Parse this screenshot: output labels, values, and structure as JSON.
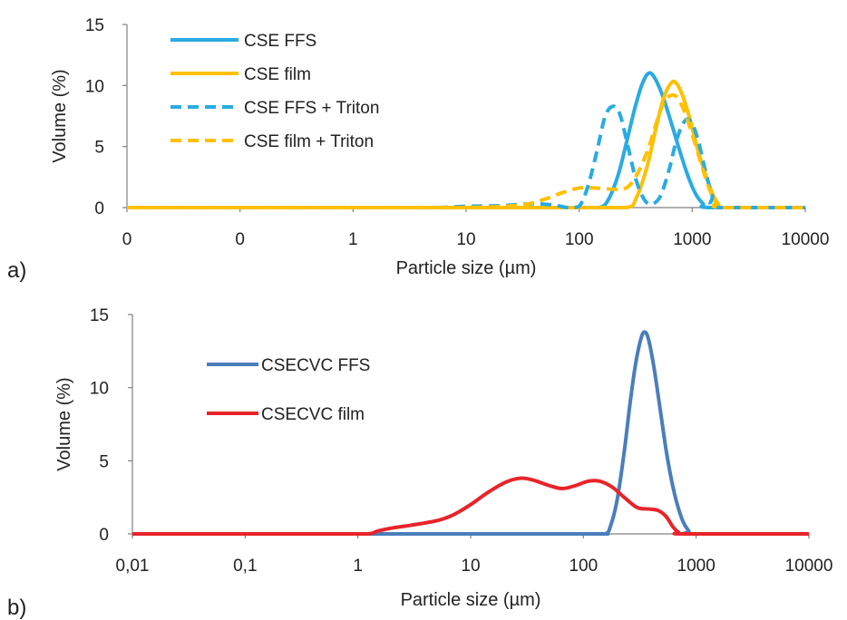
{
  "chart_data": [
    {
      "panel_label": "a)",
      "type": "line",
      "xlabel": "Particle size  (µm)",
      "ylabel": "Volume (%)",
      "x_scale": "log",
      "x_ticks": [
        0.01,
        0.1,
        1,
        10,
        100,
        1000,
        10000
      ],
      "x_tick_labels": [
        "0",
        "0",
        "1",
        "10",
        "100",
        "1000",
        "10000"
      ],
      "y_ticks": [
        0,
        5,
        10,
        15
      ],
      "y_tick_labels": [
        "0",
        "5",
        "10",
        "15"
      ],
      "xlim": [
        0.01,
        10000
      ],
      "ylim": [
        0,
        15
      ],
      "grid": false,
      "legend_position": "top-left",
      "series": [
        {
          "name": "CSE FFS",
          "color": "#29abe2",
          "dash": "solid",
          "points": [
            [
              0.01,
              0
            ],
            [
              1,
              0
            ],
            [
              100,
              0
            ],
            [
              150,
              0
            ],
            [
              180,
              0.6
            ],
            [
              220,
              2.6
            ],
            [
              260,
              5.2
            ],
            [
              310,
              8.1
            ],
            [
              360,
              10.1
            ],
            [
              410,
              11.0
            ],
            [
              460,
              10.7
            ],
            [
              540,
              9.3
            ],
            [
              640,
              7.2
            ],
            [
              760,
              4.9
            ],
            [
              900,
              2.8
            ],
            [
              1060,
              1.2
            ],
            [
              1250,
              0.3
            ],
            [
              1450,
              0
            ],
            [
              10000,
              0
            ]
          ]
        },
        {
          "name": "CSE film",
          "color": "#ffc000",
          "dash": "solid",
          "points": [
            [
              0.01,
              0
            ],
            [
              1,
              0
            ],
            [
              100,
              0
            ],
            [
              260,
              0
            ],
            [
              320,
              0.8
            ],
            [
              400,
              3.4
            ],
            [
              480,
              6.6
            ],
            [
              560,
              9.0
            ],
            [
              650,
              10.2
            ],
            [
              720,
              10.2
            ],
            [
              820,
              9.2
            ],
            [
              950,
              7.3
            ],
            [
              1100,
              5.0
            ],
            [
              1300,
              2.8
            ],
            [
              1500,
              1.2
            ],
            [
              1700,
              0.3
            ],
            [
              1900,
              0
            ],
            [
              10000,
              0
            ]
          ]
        },
        {
          "name": "CSE FFS + Triton",
          "color": "#29abe2",
          "dash": "dashed",
          "points": [
            [
              0.01,
              0
            ],
            [
              1,
              0
            ],
            [
              5,
              0
            ],
            [
              10,
              0.1
            ],
            [
              20,
              0.15
            ],
            [
              35,
              0.3
            ],
            [
              45,
              0.3
            ],
            [
              60,
              0.2
            ],
            [
              80,
              0
            ],
            [
              100,
              0.1
            ],
            [
              120,
              1.8
            ],
            [
              145,
              4.8
            ],
            [
              170,
              7.5
            ],
            [
              200,
              8.3
            ],
            [
              230,
              7.6
            ],
            [
              270,
              5.0
            ],
            [
              320,
              2.2
            ],
            [
              380,
              0.6
            ],
            [
              440,
              0.3
            ],
            [
              520,
              0.9
            ],
            [
              620,
              3.0
            ],
            [
              730,
              5.6
            ],
            [
              860,
              7.1
            ],
            [
              980,
              7.0
            ],
            [
              1120,
              5.6
            ],
            [
              1300,
              3.1
            ],
            [
              1500,
              1.0
            ],
            [
              1700,
              0
            ],
            [
              10000,
              0
            ]
          ]
        },
        {
          "name": "CSE film + Triton",
          "color": "#ffc000",
          "dash": "dashed",
          "points": [
            [
              0.01,
              0
            ],
            [
              1,
              0
            ],
            [
              10,
              0
            ],
            [
              30,
              0.2
            ],
            [
              50,
              0.7
            ],
            [
              70,
              1.2
            ],
            [
              100,
              1.6
            ],
            [
              140,
              1.6
            ],
            [
              200,
              1.5
            ],
            [
              260,
              1.6
            ],
            [
              320,
              2.6
            ],
            [
              400,
              4.6
            ],
            [
              480,
              6.9
            ],
            [
              560,
              8.6
            ],
            [
              650,
              9.2
            ],
            [
              740,
              9.0
            ],
            [
              850,
              7.9
            ],
            [
              1000,
              6.0
            ],
            [
              1180,
              3.8
            ],
            [
              1380,
              1.8
            ],
            [
              1600,
              0.5
            ],
            [
              1800,
              0
            ],
            [
              10000,
              0
            ]
          ]
        }
      ]
    },
    {
      "panel_label": "b)",
      "type": "line",
      "xlabel": "Particle size  (µm)",
      "ylabel": "Volume (%)",
      "x_scale": "log",
      "x_ticks": [
        0.01,
        0.1,
        1,
        10,
        100,
        1000,
        10000
      ],
      "x_tick_labels": [
        "0,01",
        "0,1",
        "1",
        "10",
        "100",
        "1000",
        "10000"
      ],
      "y_ticks": [
        0,
        5,
        10,
        15
      ],
      "y_tick_labels": [
        "0",
        "5",
        "10",
        "15"
      ],
      "xlim": [
        0.01,
        10000
      ],
      "ylim": [
        0,
        15
      ],
      "grid": false,
      "legend_position": "top-left",
      "series": [
        {
          "name": "CSECVC FFS",
          "color": "#4a7ebb",
          "dash": "solid",
          "points": [
            [
              0.01,
              0
            ],
            [
              1,
              0
            ],
            [
              100,
              0
            ],
            [
              155,
              0
            ],
            [
              175,
              0.6
            ],
            [
              200,
              2.4
            ],
            [
              230,
              5.6
            ],
            [
              260,
              9.0
            ],
            [
              290,
              11.6
            ],
            [
              320,
              13.2
            ],
            [
              345,
              13.8
            ],
            [
              375,
              13.4
            ],
            [
              420,
              11.5
            ],
            [
              480,
              8.5
            ],
            [
              550,
              5.4
            ],
            [
              640,
              2.8
            ],
            [
              750,
              1.0
            ],
            [
              860,
              0.2
            ],
            [
              950,
              0
            ],
            [
              10000,
              0
            ]
          ]
        },
        {
          "name": "CSECVC film",
          "color": "#e8242a",
          "dash": "solid",
          "points": [
            [
              0.01,
              0
            ],
            [
              0.5,
              0
            ],
            [
              1.2,
              0
            ],
            [
              1.5,
              0.2
            ],
            [
              2,
              0.4
            ],
            [
              3,
              0.6
            ],
            [
              5,
              0.9
            ],
            [
              7,
              1.3
            ],
            [
              10,
              2.0
            ],
            [
              14,
              2.8
            ],
            [
              20,
              3.5
            ],
            [
              27,
              3.8
            ],
            [
              35,
              3.7
            ],
            [
              50,
              3.3
            ],
            [
              65,
              3.1
            ],
            [
              85,
              3.3
            ],
            [
              110,
              3.6
            ],
            [
              140,
              3.6
            ],
            [
              180,
              3.2
            ],
            [
              230,
              2.5
            ],
            [
              300,
              1.8
            ],
            [
              380,
              1.7
            ],
            [
              460,
              1.6
            ],
            [
              540,
              1.2
            ],
            [
              620,
              0.5
            ],
            [
              700,
              0.1
            ],
            [
              800,
              0
            ],
            [
              10000,
              0
            ]
          ]
        }
      ]
    }
  ]
}
